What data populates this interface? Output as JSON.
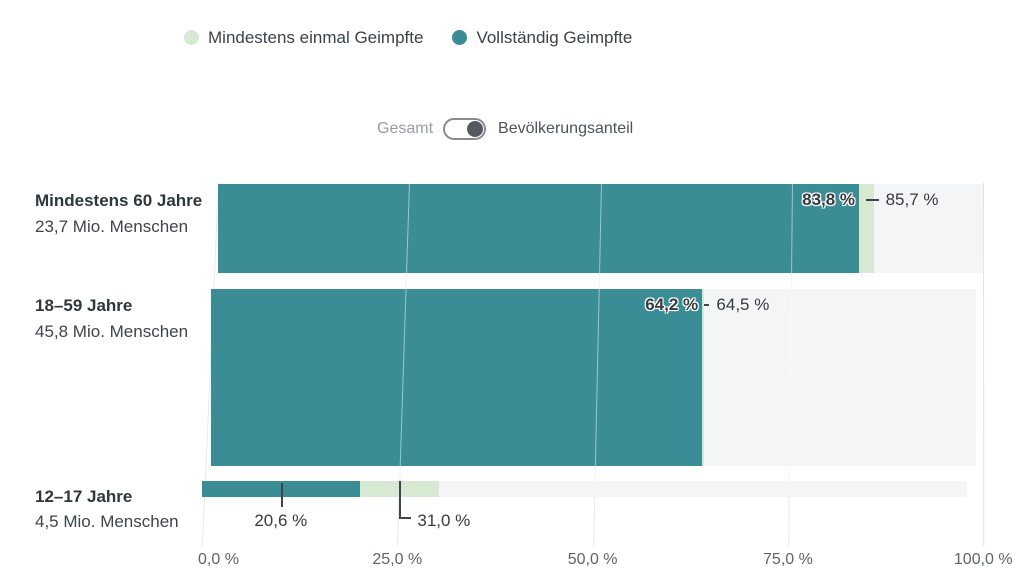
{
  "legend": {
    "items": [
      {
        "label": "Mindestens einmal Geimpfte",
        "color": "#d7e8d3"
      },
      {
        "label": "Vollständig Geimpfte",
        "color": "#3a8c95"
      }
    ]
  },
  "toggle": {
    "left_label": "Gesamt",
    "right_label": "Bevölkerungsanteil",
    "selected": "Bevölkerungsanteil"
  },
  "chart_data": {
    "type": "bar",
    "orientation": "horizontal",
    "value_unit": "percent",
    "xlim": [
      0,
      100
    ],
    "x_ticks": [
      0,
      25,
      50,
      75,
      100
    ],
    "x_tick_labels": [
      "0,0 %",
      "25,0 %",
      "50,0 %",
      "75,0 %",
      "100,0 %"
    ],
    "grid": true,
    "bar_height_represents": "Bevölkerungsanteil",
    "track_color": "#f3f5f6",
    "categories": [
      {
        "label": "Mindestens 60 Jahre",
        "sublabel": "23,7 Mio. Menschen",
        "population_mio": 23.7
      },
      {
        "label": "18–59 Jahre",
        "sublabel": "45,8 Mio. Menschen",
        "population_mio": 45.8
      },
      {
        "label": "12–17 Jahre",
        "sublabel": "4,5 Mio. Menschen",
        "population_mio": 4.5
      }
    ],
    "series": [
      {
        "name": "Mindestens einmal Geimpfte",
        "color": "#d7e8d3",
        "values": [
          85.7,
          64.5,
          31.0
        ],
        "value_labels": [
          "85,7 %",
          "64,5 %",
          "31,0 %"
        ]
      },
      {
        "name": "Vollständig Geimpfte",
        "color": "#3a8c95",
        "values": [
          83.8,
          64.2,
          20.6
        ],
        "value_labels": [
          "83,8 %",
          "64,2 %",
          "20,6 %"
        ]
      }
    ]
  }
}
